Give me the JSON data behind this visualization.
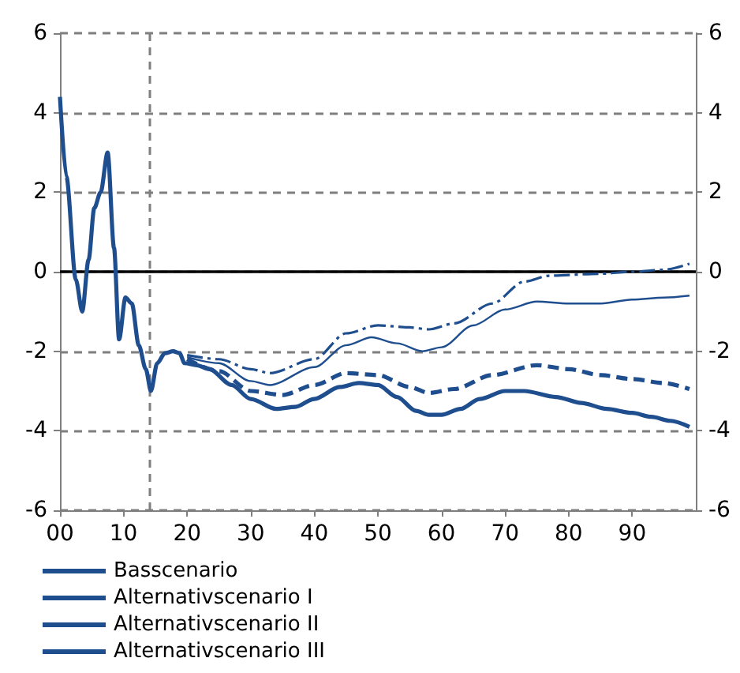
{
  "chart_data": {
    "type": "line",
    "series": [
      {
        "name": "Basscenario",
        "color": "#1f4e8f",
        "line_style": "solid",
        "x": [
          0,
          1,
          2.5,
          3.5,
          4.5,
          5.4,
          6.4,
          7.5,
          8.5,
          9.3,
          10.3,
          11.3,
          12.4,
          13.5,
          14.3,
          15.3,
          16.5,
          17.8,
          18.8,
          19.6,
          21.5,
          23.5,
          27,
          30,
          34,
          37,
          40,
          44,
          47,
          50,
          53,
          56,
          58,
          60,
          63,
          66,
          70,
          73,
          78,
          82,
          86,
          90,
          93,
          96,
          99
        ],
        "values": [
          4.4,
          2.4,
          -0.2,
          -1.0,
          0.3,
          1.6,
          2.0,
          3.0,
          0.6,
          -1.7,
          -0.65,
          -0.8,
          -1.85,
          -2.45,
          -3.0,
          -2.3,
          -2.05,
          -2.0,
          -2.05,
          -2.3,
          -2.35,
          -2.45,
          -2.85,
          -3.2,
          -3.45,
          -3.4,
          -3.2,
          -2.9,
          -2.8,
          -2.85,
          -3.15,
          -3.5,
          -3.6,
          -3.6,
          -3.45,
          -3.2,
          -3.0,
          -3.0,
          -3.15,
          -3.3,
          -3.45,
          -3.55,
          -3.65,
          -3.75,
          -3.9
        ]
      },
      {
        "name": "Alternativscenario I",
        "color": "#1f4e8f",
        "line_style": "dashed",
        "x": [
          20,
          25,
          30,
          35,
          40,
          45,
          50,
          55,
          58,
          62,
          68,
          75,
          80,
          85,
          90,
          95,
          99
        ],
        "values": [
          -2.2,
          -2.5,
          -3.0,
          -3.1,
          -2.85,
          -2.55,
          -2.6,
          -2.9,
          -3.05,
          -2.95,
          -2.6,
          -2.35,
          -2.45,
          -2.6,
          -2.7,
          -2.8,
          -2.95
        ]
      },
      {
        "name": "Alternativscenario II",
        "color": "#1f4e8f",
        "line_style": "solid",
        "x": [
          20,
          25,
          30,
          33,
          40,
          45,
          49,
          53,
          57,
          60,
          65,
          70,
          75,
          80,
          85,
          90,
          95,
          99
        ],
        "values": [
          -2.15,
          -2.3,
          -2.75,
          -2.85,
          -2.4,
          -1.85,
          -1.65,
          -1.8,
          -2.0,
          -1.9,
          -1.35,
          -0.95,
          -0.75,
          -0.8,
          -0.8,
          -0.7,
          -0.65,
          -0.6
        ]
      },
      {
        "name": "Alternativscenario III",
        "color": "#1f4e8f",
        "line_style": "dashed",
        "x": [
          20,
          25,
          30,
          33,
          40,
          45,
          50,
          55,
          58,
          62,
          68,
          73,
          77,
          85,
          90,
          95,
          99
        ],
        "values": [
          -2.1,
          -2.2,
          -2.45,
          -2.55,
          -2.2,
          -1.55,
          -1.35,
          -1.4,
          -1.45,
          -1.3,
          -0.8,
          -0.25,
          -0.1,
          -0.05,
          0.0,
          0.05,
          0.2
        ]
      }
    ],
    "xlim": [
      0,
      100
    ],
    "xticks": [
      {
        "value": 0,
        "label": "00"
      },
      {
        "value": 10,
        "label": "10"
      },
      {
        "value": 20,
        "label": "20"
      },
      {
        "value": 30,
        "label": "30"
      },
      {
        "value": 40,
        "label": "40"
      },
      {
        "value": 50,
        "label": "50"
      },
      {
        "value": 60,
        "label": "60"
      },
      {
        "value": 70,
        "label": "70"
      },
      {
        "value": 80,
        "label": "80"
      },
      {
        "value": 90,
        "label": "90"
      }
    ],
    "ylim": [
      -6,
      6
    ],
    "yticks": [
      -6,
      -4,
      -2,
      0,
      2,
      4,
      6
    ],
    "y2lim": [
      -6,
      6
    ],
    "y2ticks": [
      -6,
      -4,
      -2,
      0,
      2,
      4,
      6
    ],
    "ref_lines": [
      {
        "axis": "x",
        "value": 14,
        "color": "#7f7f7f",
        "line_style": "dashed"
      },
      {
        "axis": "y",
        "value": 0,
        "color": "#000000",
        "line_style": "solid"
      }
    ],
    "grid": "y",
    "legend": "bottom",
    "marker": "none"
  }
}
